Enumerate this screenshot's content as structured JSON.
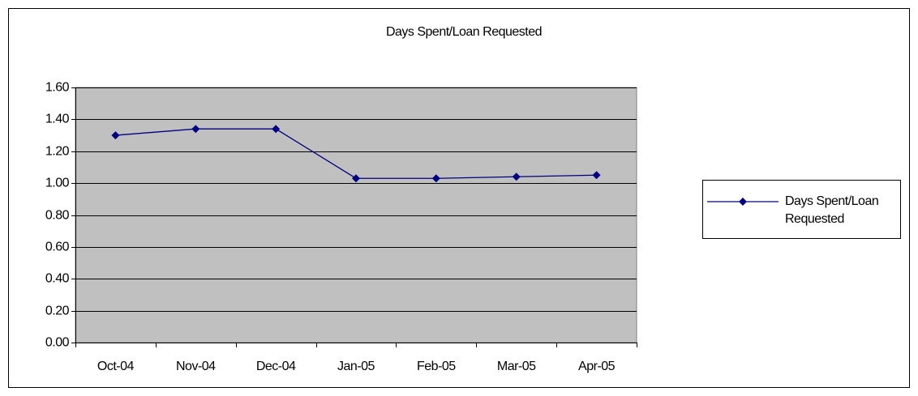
{
  "chart_data": {
    "type": "line",
    "title": "Days Spent/Loan Requested",
    "categories": [
      "Oct-04",
      "Nov-04",
      "Dec-04",
      "Jan-05",
      "Feb-05",
      "Mar-05",
      "Apr-05"
    ],
    "series": [
      {
        "name": "Days Spent/Loan Requested",
        "color": "#000080",
        "values": [
          1.3,
          1.34,
          1.34,
          1.03,
          1.03,
          1.04,
          1.05
        ]
      }
    ],
    "ylim": [
      0,
      1.6
    ],
    "yticks": [
      {
        "value": 0,
        "label": "0.00"
      },
      {
        "value": 0.2,
        "label": "0.20"
      },
      {
        "value": 0.4,
        "label": "0.40"
      },
      {
        "value": 0.6,
        "label": "0.60"
      },
      {
        "value": 0.8,
        "label": "0.80"
      },
      {
        "value": 1.0,
        "label": "1.00"
      },
      {
        "value": 1.2,
        "label": "1.20"
      },
      {
        "value": 1.4,
        "label": "1.40"
      },
      {
        "value": 1.6,
        "label": "1.60"
      }
    ],
    "grid": true,
    "plot_background": "#c0c0c0",
    "legend": "right"
  }
}
